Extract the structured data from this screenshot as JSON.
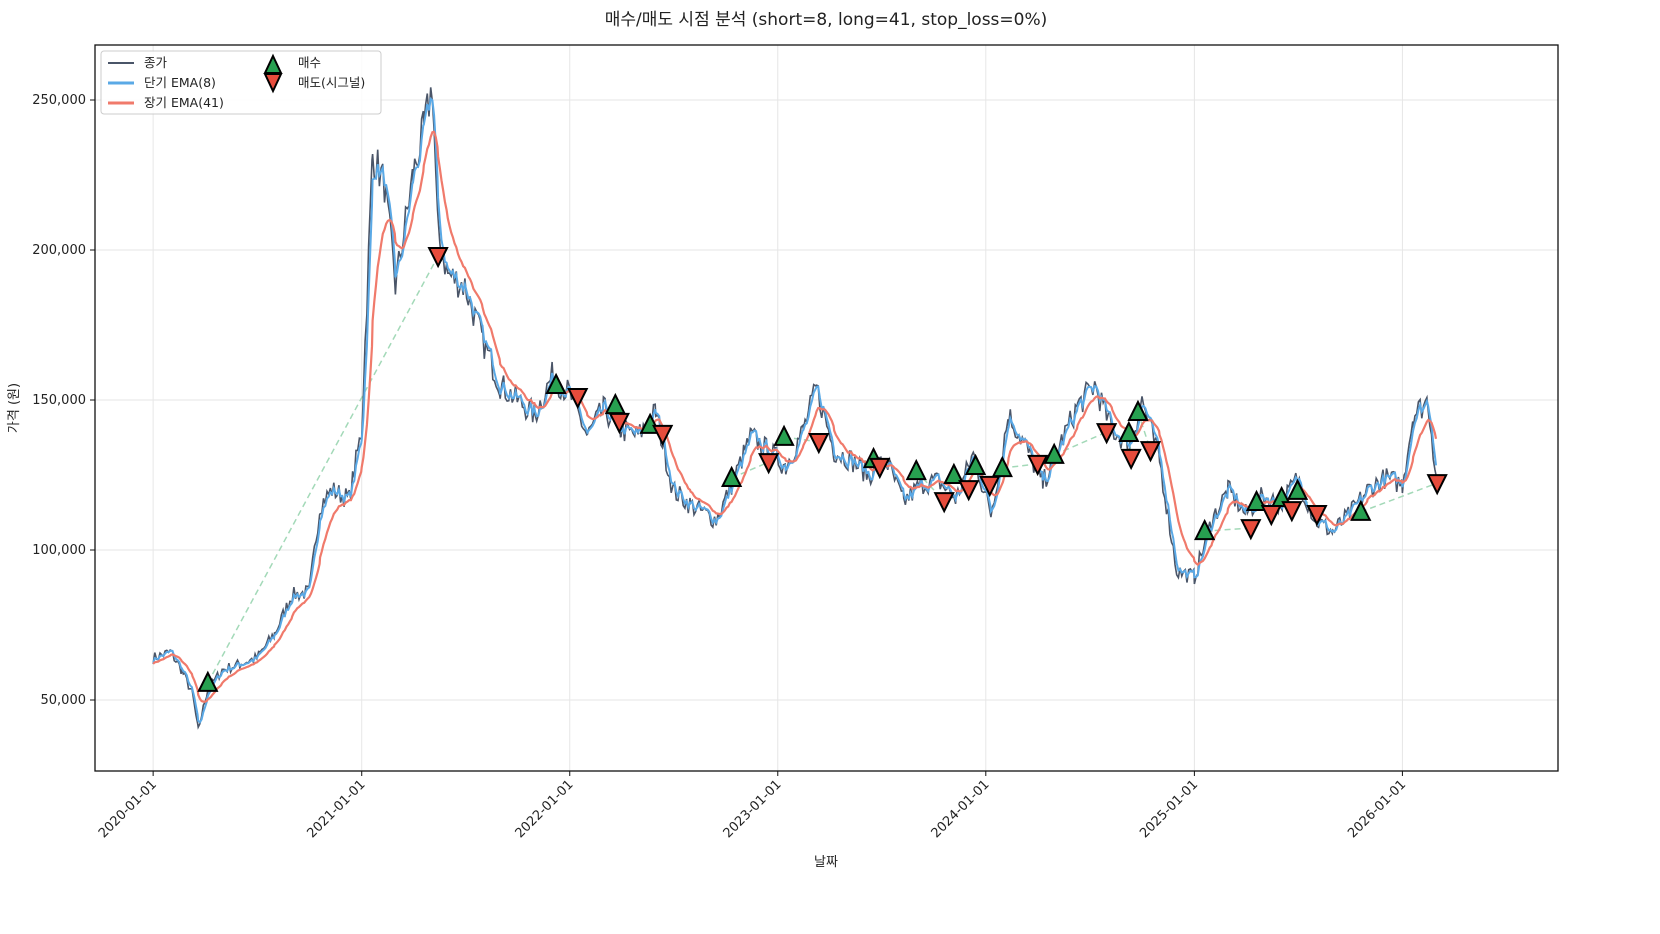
{
  "chart_data": {
    "type": "line",
    "title": "매수/매도 시점 분석 (short=8, long=41, stop_loss=0%)",
    "xlabel": "날짜",
    "ylabel": "가격 (원)",
    "xlim": [
      "2019-09-21",
      "2026-10-01"
    ],
    "ylim": [
      26333,
      268333
    ],
    "grid": true,
    "legend_position": "top-left",
    "x_ticks": [
      "2020-01-01",
      "2021-01-01",
      "2022-01-01",
      "2023-01-01",
      "2024-01-01",
      "2025-01-01",
      "2026-01-01"
    ],
    "y_ticks": [
      50000,
      100000,
      150000,
      200000,
      250000
    ],
    "y_tick_labels": [
      "50,000",
      "100,000",
      "150,000",
      "200,000",
      "250,000"
    ],
    "legend": {
      "close": "종가",
      "short_ema": "단기 EMA(8)",
      "long_ema": "장기 EMA(41)",
      "buy": "매수",
      "sell": "매도(시그널)"
    },
    "colors": {
      "close": "#4a5568",
      "short_ema": "#5aa9e6",
      "long_ema": "#f07a6b",
      "buy": "#27a050",
      "sell": "#e74c3c",
      "trade_line": "#a3d9b8"
    },
    "close_series": [
      [
        "2020-01-01",
        64000
      ],
      [
        "2020-02-01",
        66000
      ],
      [
        "2020-02-20",
        60000
      ],
      [
        "2020-03-10",
        52000
      ],
      [
        "2020-03-20",
        40000
      ],
      [
        "2020-04-05",
        53000
      ],
      [
        "2020-05-01",
        60000
      ],
      [
        "2020-06-01",
        62000
      ],
      [
        "2020-07-01",
        64000
      ],
      [
        "2020-08-01",
        72000
      ],
      [
        "2020-09-01",
        85000
      ],
      [
        "2020-10-01",
        86000
      ],
      [
        "2020-10-20",
        115000
      ],
      [
        "2020-11-10",
        120000
      ],
      [
        "2020-12-10",
        117000
      ],
      [
        "2021-01-01",
        140000
      ],
      [
        "2021-01-20",
        232000
      ],
      [
        "2021-02-10",
        222000
      ],
      [
        "2021-03-01",
        188000
      ],
      [
        "2021-04-01",
        225000
      ],
      [
        "2021-04-20",
        240000
      ],
      [
        "2021-05-05",
        255000
      ],
      [
        "2021-05-15",
        205000
      ],
      [
        "2021-06-01",
        192000
      ],
      [
        "2021-07-01",
        188000
      ],
      [
        "2021-08-01",
        170000
      ],
      [
        "2021-09-01",
        155000
      ],
      [
        "2021-10-01",
        150000
      ],
      [
        "2021-11-01",
        145000
      ],
      [
        "2021-12-01",
        158000
      ],
      [
        "2022-01-01",
        152000
      ],
      [
        "2022-02-01",
        138000
      ],
      [
        "2022-03-01",
        147000
      ],
      [
        "2022-04-01",
        140000
      ],
      [
        "2022-05-01",
        138000
      ],
      [
        "2022-06-01",
        146000
      ],
      [
        "2022-07-01",
        120000
      ],
      [
        "2022-08-01",
        115000
      ],
      [
        "2022-09-15",
        110000
      ],
      [
        "2022-10-15",
        123000
      ],
      [
        "2022-11-15",
        138000
      ],
      [
        "2022-12-15",
        133000
      ],
      [
        "2023-01-15",
        128000
      ],
      [
        "2023-02-15",
        140000
      ],
      [
        "2023-03-10",
        154000
      ],
      [
        "2023-04-10",
        133000
      ],
      [
        "2023-05-10",
        130000
      ],
      [
        "2023-06-10",
        125000
      ],
      [
        "2023-07-10",
        130000
      ],
      [
        "2023-08-10",
        116000
      ],
      [
        "2023-09-10",
        122000
      ],
      [
        "2023-10-10",
        123000
      ],
      [
        "2023-11-10",
        117000
      ],
      [
        "2023-12-10",
        132000
      ],
      [
        "2024-01-10",
        112000
      ],
      [
        "2024-02-10",
        145000
      ],
      [
        "2024-03-10",
        135000
      ],
      [
        "2024-04-10",
        122000
      ],
      [
        "2024-05-10",
        135000
      ],
      [
        "2024-06-10",
        148000
      ],
      [
        "2024-07-10",
        155000
      ],
      [
        "2024-08-10",
        140000
      ],
      [
        "2024-09-10",
        135000
      ],
      [
        "2024-10-01",
        150000
      ],
      [
        "2024-11-01",
        130000
      ],
      [
        "2024-12-01",
        93000
      ],
      [
        "2025-01-01",
        91000
      ],
      [
        "2025-02-01",
        110000
      ],
      [
        "2025-03-01",
        120000
      ],
      [
        "2025-04-01",
        112000
      ],
      [
        "2025-05-01",
        118000
      ],
      [
        "2025-06-01",
        115000
      ],
      [
        "2025-07-01",
        124000
      ],
      [
        "2025-08-01",
        110000
      ],
      [
        "2025-09-01",
        106000
      ],
      [
        "2025-10-01",
        112000
      ],
      [
        "2025-11-01",
        120000
      ],
      [
        "2025-12-01",
        124000
      ],
      [
        "2026-01-01",
        122000
      ],
      [
        "2026-01-20",
        145000
      ],
      [
        "2026-02-15",
        150000
      ],
      [
        "2026-03-01",
        125000
      ]
    ],
    "buy_signals": [
      [
        "2020-04-06",
        55700
      ],
      [
        "2021-12-08",
        155000
      ],
      [
        "2022-03-22",
        148300
      ],
      [
        "2022-05-22",
        141700
      ],
      [
        "2022-10-12",
        124000
      ],
      [
        "2023-01-12",
        137700
      ],
      [
        "2023-06-18",
        130300
      ],
      [
        "2023-09-01",
        126300
      ],
      [
        "2023-11-06",
        125000
      ],
      [
        "2023-12-14",
        128000
      ],
      [
        "2024-01-30",
        127300
      ],
      [
        "2024-04-30",
        131700
      ],
      [
        "2024-09-08",
        139000
      ],
      [
        "2024-09-24",
        146000
      ],
      [
        "2025-01-19",
        106300
      ],
      [
        "2025-04-20",
        116000
      ],
      [
        "2025-06-03",
        117300
      ],
      [
        "2025-07-01",
        119700
      ],
      [
        "2025-10-20",
        112700
      ]
    ],
    "sell_signals": [
      [
        "2021-05-15",
        198000
      ],
      [
        "2022-01-15",
        151000
      ],
      [
        "2022-03-29",
        142700
      ],
      [
        "2022-06-13",
        138700
      ],
      [
        "2022-12-16",
        129300
      ],
      [
        "2023-03-14",
        136000
      ],
      [
        "2023-06-29",
        127700
      ],
      [
        "2023-10-20",
        116300
      ],
      [
        "2023-12-02",
        120300
      ],
      [
        "2024-01-08",
        121700
      ],
      [
        "2024-04-01",
        128700
      ],
      [
        "2024-07-31",
        139300
      ],
      [
        "2024-09-12",
        130700
      ],
      [
        "2024-10-16",
        133300
      ],
      [
        "2025-04-10",
        107300
      ],
      [
        "2025-05-16",
        112000
      ],
      [
        "2025-06-21",
        113300
      ],
      [
        "2025-08-04",
        112000
      ],
      [
        "2026-03-03",
        122300
      ]
    ]
  }
}
